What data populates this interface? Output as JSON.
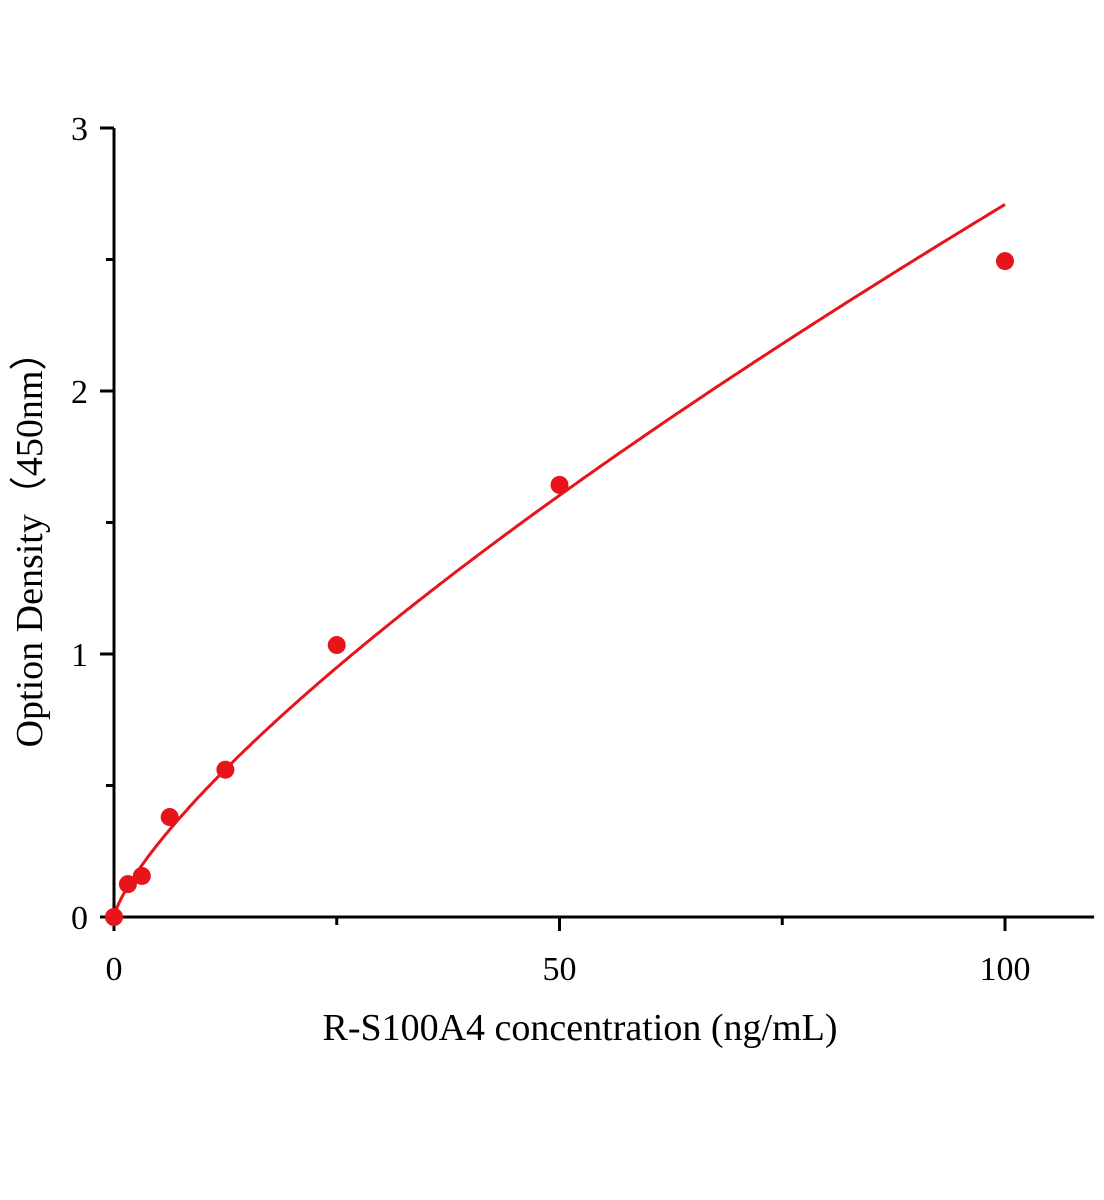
{
  "chart_data": {
    "type": "scatter",
    "title": "",
    "xlabel": "R-S100A4 concentration (ng/mL)",
    "ylabel": "Option Density（450nm）",
    "xlim": [
      0,
      110
    ],
    "ylim": [
      0,
      3
    ],
    "x_ticks": [
      0,
      50,
      100
    ],
    "x_tick_labels": [
      "0",
      "50",
      "100"
    ],
    "x_minor_ticks": [
      25,
      75
    ],
    "y_ticks": [
      0,
      1,
      2,
      3
    ],
    "y_tick_labels": [
      "0",
      "1",
      "2",
      "3"
    ],
    "y_minor_ticks": [
      0.5,
      1.5,
      2.5
    ],
    "grid": false,
    "legend": "none",
    "series": [
      {
        "x": [
          0,
          1.5625,
          3.125,
          6.25,
          12.5,
          25,
          50,
          100
        ],
        "y": [
          0,
          0.125,
          0.156,
          0.38,
          0.56,
          1.034,
          1.643,
          2.494
        ],
        "color": "#e8141b",
        "marker": "circle",
        "fit_line": true
      }
    ]
  }
}
